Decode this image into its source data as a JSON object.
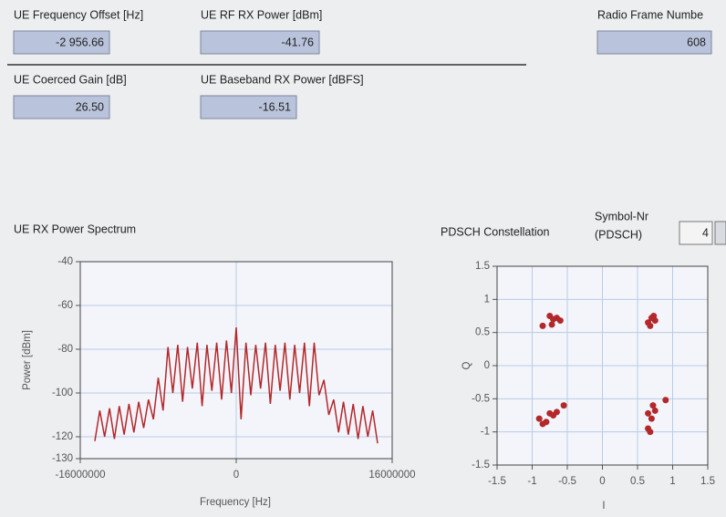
{
  "indicators": [
    {
      "label": "UE Frequency Offset [Hz]",
      "value": "-2 956.66"
    },
    {
      "label": "UE RF RX Power [dBm]",
      "value": "-41.76"
    },
    {
      "label": "Radio Frame Numbe",
      "value": "608"
    },
    {
      "label": "UE Coerced Gain [dB]",
      "value": "26.50"
    },
    {
      "label": "UE Baseband RX Power [dBFS]",
      "value": "-16.51"
    }
  ],
  "symbol_selector": {
    "label_lines": [
      "Symbol-Nr",
      "(PDSCH)"
    ],
    "value": "4"
  },
  "chart_data": [
    {
      "type": "line",
      "title": "UE RX Power Spectrum",
      "x_label": "Frequency [Hz]",
      "y_label": "Power [dBm]",
      "color": "#b3282a",
      "x": [
        -14500000,
        -14000000,
        -13500000,
        -13000000,
        -12500000,
        -12000000,
        -11500000,
        -11000000,
        -10500000,
        -10000000,
        -9500000,
        -9000000,
        -8500000,
        -8000000,
        -7500000,
        -7000000,
        -6500000,
        -6000000,
        -5500000,
        -5000000,
        -4500000,
        -4000000,
        -3500000,
        -3000000,
        -2500000,
        -2000000,
        -1500000,
        -1000000,
        -500000,
        0,
        500000,
        1000000,
        1500000,
        2000000,
        2500000,
        3000000,
        3500000,
        4000000,
        4500000,
        5000000,
        5500000,
        6000000,
        6500000,
        7000000,
        7500000,
        8000000,
        8500000,
        9000000,
        9500000,
        10000000,
        10500000,
        11000000,
        11500000,
        12000000,
        12500000,
        13000000,
        13500000,
        14000000,
        14500000
      ],
      "values": [
        -122,
        -108,
        -120,
        -107,
        -121,
        -106,
        -119,
        -105,
        -118,
        -104,
        -116,
        -103,
        -112,
        -93,
        -108,
        -79,
        -100,
        -78,
        -104,
        -79,
        -98,
        -77,
        -106,
        -78,
        -99,
        -77,
        -103,
        -76,
        -100,
        -70,
        -112,
        -77,
        -101,
        -78,
        -98,
        -77,
        -105,
        -78,
        -99,
        -77,
        -103,
        -78,
        -100,
        -77,
        -106,
        -77,
        -101,
        -94,
        -110,
        -103,
        -118,
        -104,
        -119,
        -105,
        -121,
        -106,
        -120,
        -108,
        -123
      ],
      "xlim": [
        -16000000,
        16000000
      ],
      "xticks": [
        -16000000,
        0,
        16000000
      ],
      "ylim": [
        -130,
        -40
      ],
      "yticks": [
        -40,
        -60,
        -80,
        -100,
        -120,
        -130
      ],
      "grid": true
    },
    {
      "type": "scatter",
      "title": "PDSCH Constellation",
      "x_label": "I",
      "y_label": "Q",
      "color": "#b3282a",
      "x": [
        -0.85,
        -0.75,
        -0.7,
        -0.65,
        -0.72,
        -0.6,
        0.65,
        0.7,
        0.75,
        0.68,
        0.73,
        -0.9,
        -0.75,
        -0.7,
        -0.65,
        -0.8,
        -0.55,
        -0.85,
        0.65,
        0.7,
        0.75,
        0.65,
        0.68,
        0.9,
        0.72
      ],
      "values": [
        0.6,
        0.75,
        0.7,
        0.72,
        0.62,
        0.68,
        0.65,
        0.72,
        0.68,
        0.6,
        0.75,
        -0.8,
        -0.72,
        -0.75,
        -0.7,
        -0.85,
        -0.6,
        -0.88,
        -0.72,
        -0.8,
        -0.68,
        -0.95,
        -1.0,
        -0.52,
        -0.6
      ],
      "xlim": [
        -1.5,
        1.5
      ],
      "xticks": [
        -1.5,
        -1,
        -0.5,
        0,
        0.5,
        1,
        1.5
      ],
      "ylim": [
        -1.5,
        1.5
      ],
      "yticks": [
        1.5,
        1,
        0.5,
        0,
        -0.5,
        -1,
        -1.5
      ],
      "grid": true
    }
  ]
}
